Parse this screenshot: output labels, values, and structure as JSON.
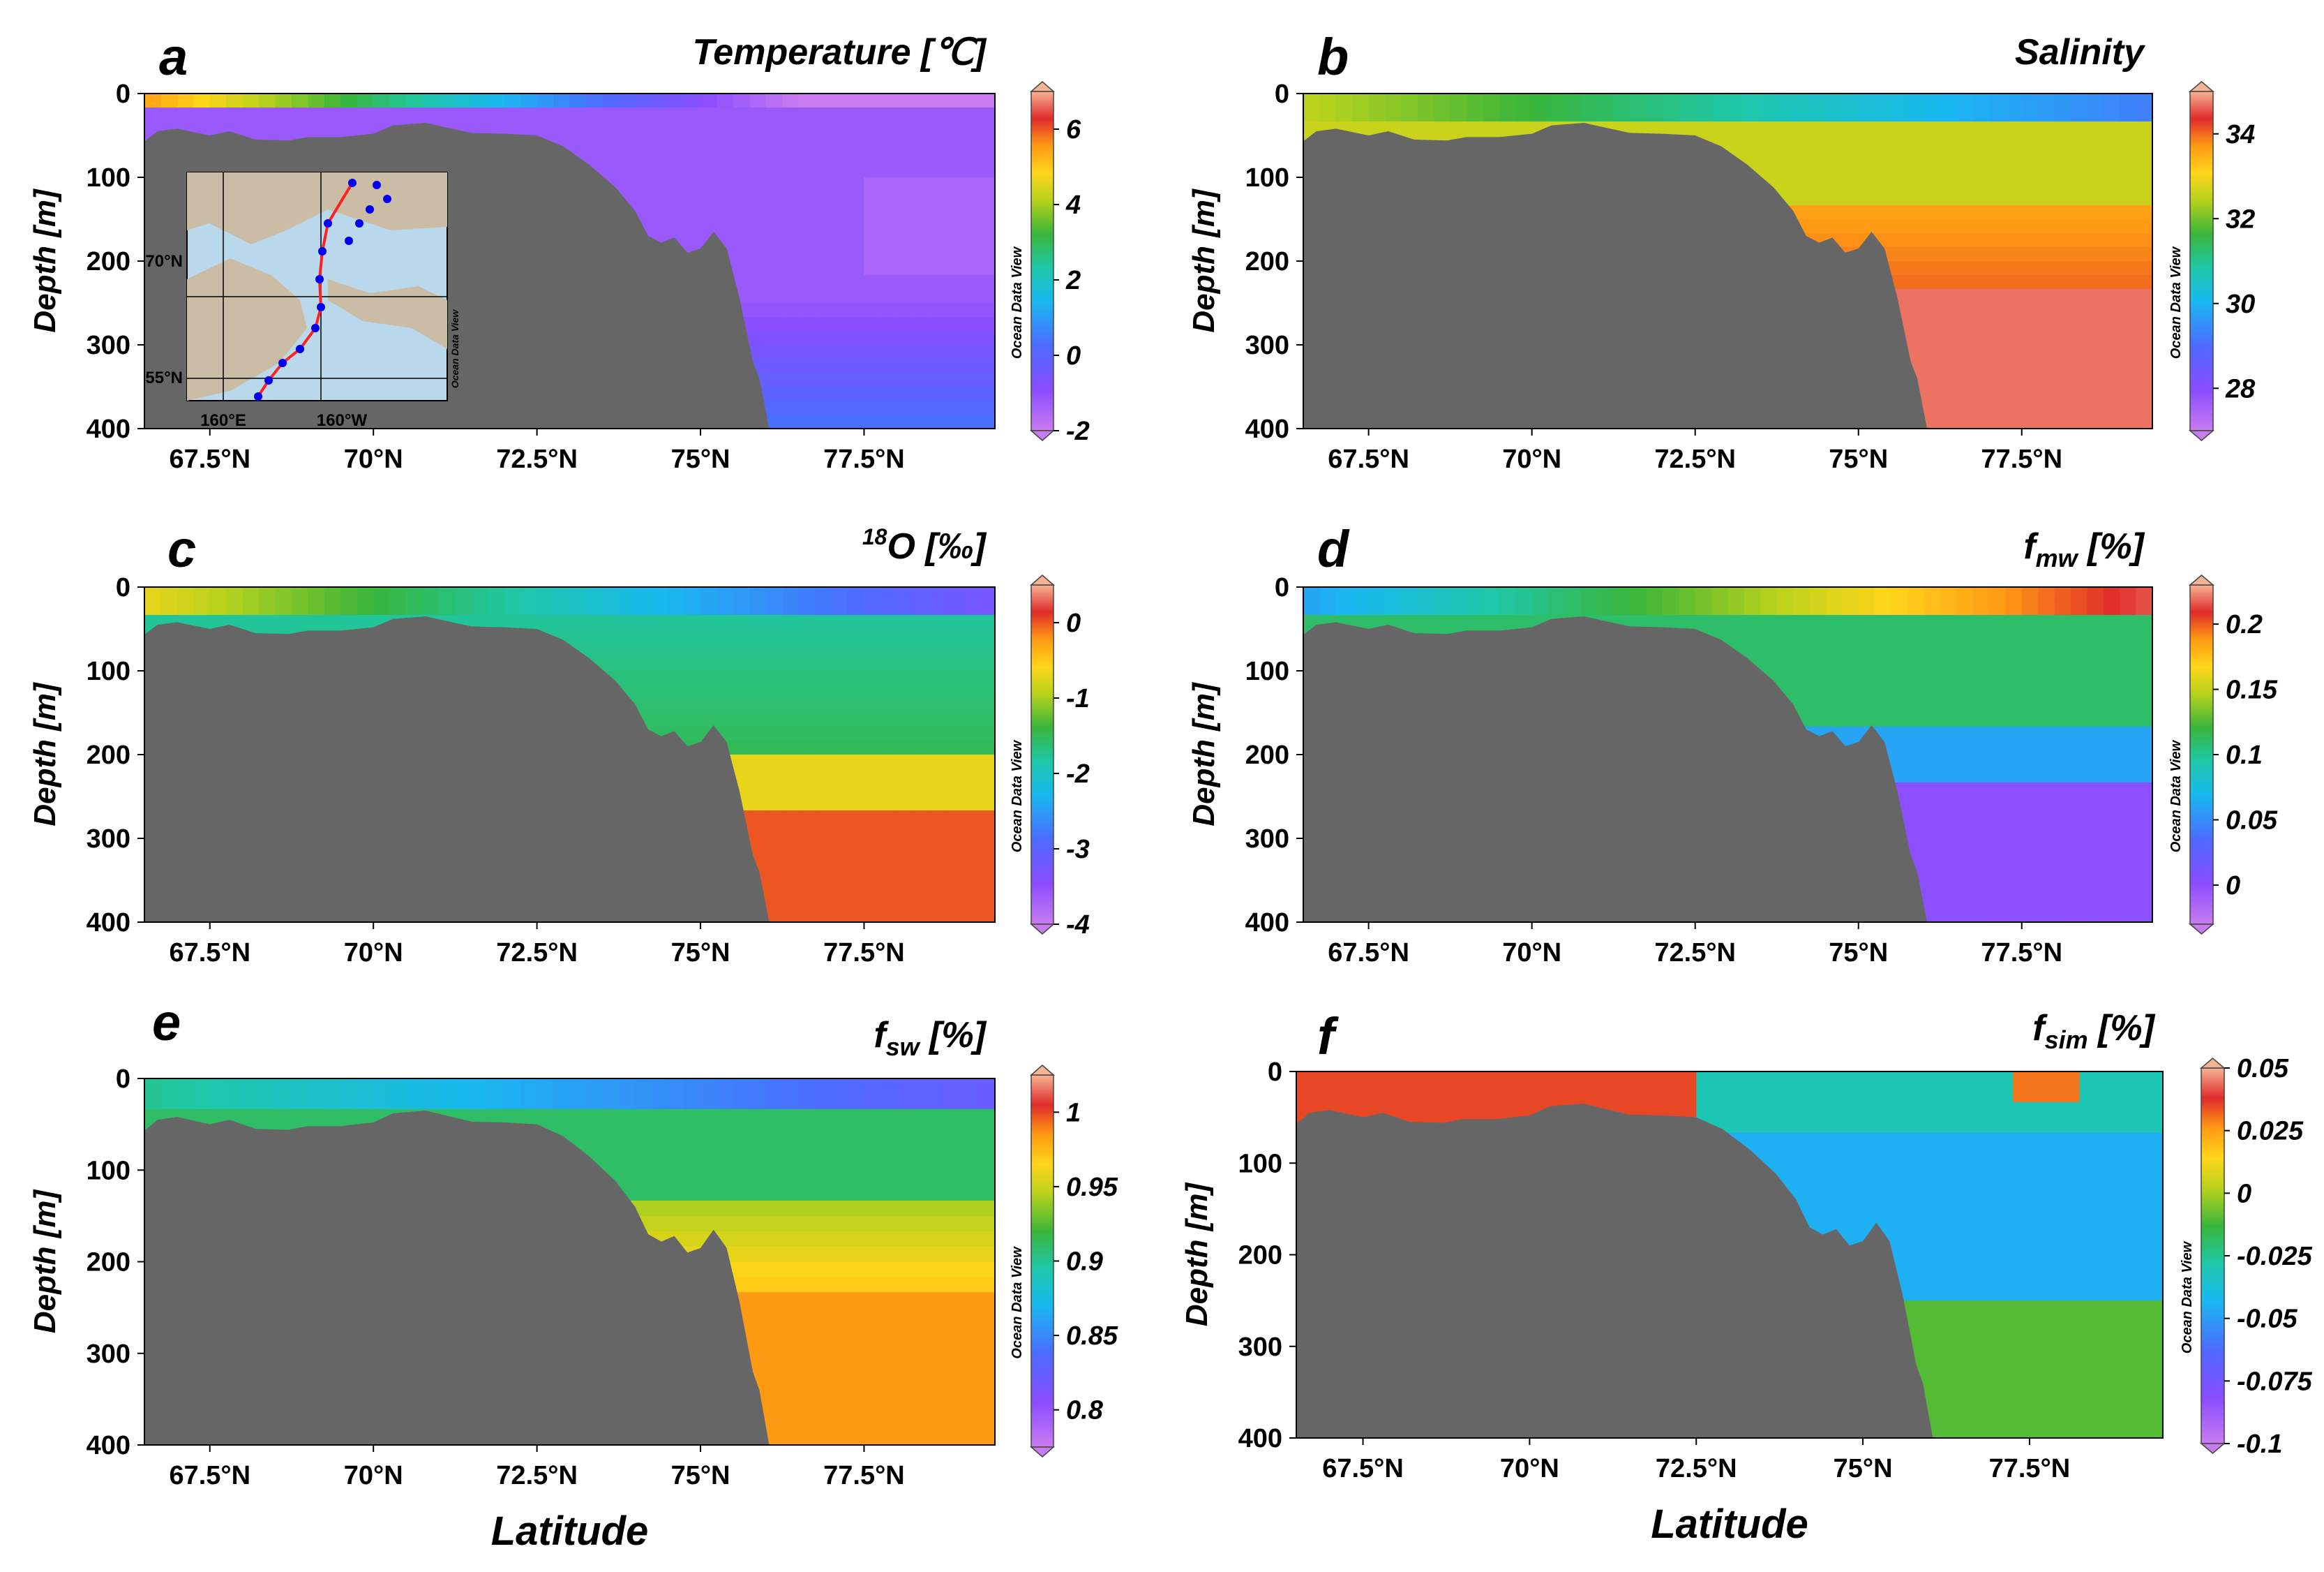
{
  "figure": {
    "x_axis_label": "Latitude",
    "y_axis_label": "Depth [m]",
    "watermark": "Ocean Data View"
  },
  "chart_data": [
    {
      "type": "heatmap",
      "panel": "a",
      "title": "Temperature [℃]",
      "xlabel": "",
      "ylabel": "Depth [m]",
      "xlim": [
        66.5,
        79.5
      ],
      "ylim": [
        400,
        0
      ],
      "x_ticks": [
        "67.5°N",
        "70°N",
        "72.5°N",
        "75°N",
        "77.5°N"
      ],
      "y_ticks": [
        "0",
        "100",
        "200",
        "300",
        "400"
      ],
      "colorbar_ticks": [
        "6",
        "4",
        "2",
        "0",
        "-2"
      ],
      "colorbar_range": [
        -2,
        7
      ],
      "field_samples": [
        {
          "lat": 67.5,
          "depth": 5,
          "value": 5.5
        },
        {
          "lat": 70,
          "depth": 5,
          "value": 3.5
        },
        {
          "lat": 72.5,
          "depth": 10,
          "value": -0.5
        },
        {
          "lat": 75,
          "depth": 50,
          "value": -1.3
        },
        {
          "lat": 77.5,
          "depth": 150,
          "value": -1.5
        },
        {
          "lat": 77.5,
          "depth": 350,
          "value": 0.3
        }
      ],
      "inset_map": {
        "lat_labels": [
          "70°N",
          "55°N"
        ],
        "lon_labels": [
          "160°E",
          "160°W"
        ],
        "watermark": "Ocean Data View"
      }
    },
    {
      "type": "heatmap",
      "panel": "b",
      "title": "Salinity",
      "xlabel": "",
      "ylabel": "Depth [m]",
      "xlim": [
        66.5,
        79.5
      ],
      "ylim": [
        400,
        0
      ],
      "x_ticks": [
        "67.5°N",
        "70°N",
        "72.5°N",
        "75°N",
        "77.5°N"
      ],
      "y_ticks": [
        "0",
        "100",
        "200",
        "300",
        "400"
      ],
      "colorbar_ticks": [
        "34",
        "32",
        "30",
        "28"
      ],
      "colorbar_range": [
        27,
        35
      ],
      "field_samples": [
        {
          "lat": 67.5,
          "depth": 5,
          "value": 32.5
        },
        {
          "lat": 75,
          "depth": 10,
          "value": 31
        },
        {
          "lat": 77.5,
          "depth": 100,
          "value": 32.5
        },
        {
          "lat": 77.5,
          "depth": 220,
          "value": 34.0
        },
        {
          "lat": 77.5,
          "depth": 350,
          "value": 34.8
        }
      ]
    },
    {
      "type": "heatmap",
      "panel": "c",
      "title": "18O [‰]",
      "xlabel": "",
      "ylabel": "Depth [m]",
      "xlim": [
        66.5,
        79.5
      ],
      "ylim": [
        400,
        0
      ],
      "x_ticks": [
        "67.5°N",
        "70°N",
        "72.5°N",
        "75°N",
        "77.5°N"
      ],
      "y_ticks": [
        "0",
        "100",
        "200",
        "300",
        "400"
      ],
      "colorbar_ticks": [
        "0",
        "-1",
        "-2",
        "-3",
        "-4"
      ],
      "colorbar_range": [
        -4,
        0.5
      ],
      "field_samples": [
        {
          "lat": 67.5,
          "depth": 5,
          "value": -0.7
        },
        {
          "lat": 75,
          "depth": 20,
          "value": -2.8
        },
        {
          "lat": 77.5,
          "depth": 150,
          "value": -1.7
        },
        {
          "lat": 77.5,
          "depth": 250,
          "value": -0.6
        },
        {
          "lat": 77.5,
          "depth": 350,
          "value": 0.1
        }
      ]
    },
    {
      "type": "heatmap",
      "panel": "d",
      "title": "fmw [%]",
      "xlabel": "",
      "ylabel": "Depth [m]",
      "xlim": [
        66.5,
        79.5
      ],
      "ylim": [
        400,
        0
      ],
      "x_ticks": [
        "67.5°N",
        "70°N",
        "72.5°N",
        "75°N",
        "77.5°N"
      ],
      "y_ticks": [
        "0",
        "100",
        "200",
        "300",
        "400"
      ],
      "colorbar_ticks": [
        "0.2",
        "0.15",
        "0.1",
        "0.05",
        "0"
      ],
      "colorbar_range": [
        -0.03,
        0.23
      ],
      "field_samples": [
        {
          "lat": 67.5,
          "depth": 5,
          "value": 0.05
        },
        {
          "lat": 77.5,
          "depth": 10,
          "value": 0.18
        },
        {
          "lat": 77.5,
          "depth": 150,
          "value": 0.1
        },
        {
          "lat": 77.5,
          "depth": 250,
          "value": 0.03
        },
        {
          "lat": 77.5,
          "depth": 350,
          "value": 0.0
        }
      ]
    },
    {
      "type": "heatmap",
      "panel": "e",
      "title": "fsw [%]",
      "xlabel": "Latitude",
      "ylabel": "Depth [m]",
      "xlim": [
        66.5,
        79.5
      ],
      "ylim": [
        400,
        0
      ],
      "x_ticks": [
        "67.5°N",
        "70°N",
        "72.5°N",
        "75°N",
        "77.5°N"
      ],
      "y_ticks": [
        "0",
        "100",
        "200",
        "300",
        "400"
      ],
      "colorbar_ticks": [
        "1",
        "0.95",
        "0.9",
        "0.85",
        "0.8"
      ],
      "colorbar_range": [
        0.775,
        1.025
      ],
      "field_samples": [
        {
          "lat": 67.5,
          "depth": 5,
          "value": 0.9
        },
        {
          "lat": 77.5,
          "depth": 10,
          "value": 0.82
        },
        {
          "lat": 77.5,
          "depth": 150,
          "value": 0.94
        },
        {
          "lat": 77.5,
          "depth": 300,
          "value": 0.99
        }
      ]
    },
    {
      "type": "heatmap",
      "panel": "f",
      "title": "fsim [%]",
      "xlabel": "Latitude",
      "ylabel": "Depth [m]",
      "xlim": [
        66.5,
        79.5
      ],
      "ylim": [
        400,
        0
      ],
      "x_ticks": [
        "67.5°N",
        "70°N",
        "72.5°N",
        "75°N",
        "77.5°N"
      ],
      "y_ticks": [
        "0",
        "100",
        "200",
        "300",
        "400"
      ],
      "colorbar_ticks": [
        "0.05",
        "0.025",
        "0",
        "-0.025",
        "-0.05",
        "-0.075",
        "-0.1"
      ],
      "colorbar_range": [
        -0.1,
        0.05
      ],
      "field_samples": [
        {
          "lat": 67.5,
          "depth": 5,
          "value": 0.03
        },
        {
          "lat": 75,
          "depth": 20,
          "value": -0.03
        },
        {
          "lat": 77.5,
          "depth": 30,
          "value": 0.03
        },
        {
          "lat": 77.5,
          "depth": 150,
          "value": -0.05
        },
        {
          "lat": 77.5,
          "depth": 350,
          "value": -0.005
        }
      ]
    }
  ]
}
